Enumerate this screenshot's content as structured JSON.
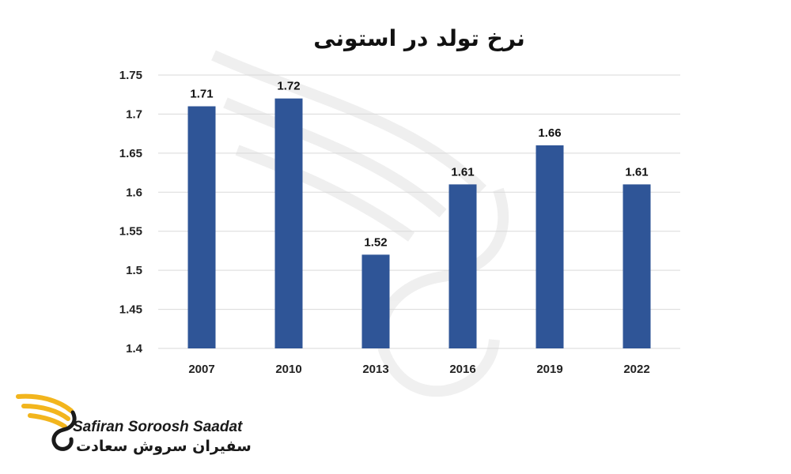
{
  "chart_data": {
    "type": "bar",
    "title": "نرخ تولد در استونی",
    "xlabel": "",
    "ylabel": "",
    "categories": [
      "2007",
      "2010",
      "2013",
      "2016",
      "2019",
      "2022"
    ],
    "values": [
      1.71,
      1.72,
      1.52,
      1.61,
      1.66,
      1.61
    ],
    "value_labels": [
      "1.71",
      "1.72",
      "1.52",
      "1.61",
      "1.66",
      "1.61"
    ],
    "ylim": [
      1.4,
      1.75
    ],
    "yticks": [
      "1.4",
      "1.45",
      "1.5",
      "1.55",
      "1.6",
      "1.65",
      "1.7",
      "1.75"
    ],
    "ytick_values": [
      1.4,
      1.45,
      1.5,
      1.55,
      1.6,
      1.65,
      1.7,
      1.75
    ],
    "grid": true,
    "legend": "none",
    "bar_color": "#2f5597"
  },
  "brand": {
    "name_en": "Safiran Soroosh Saadat",
    "name_fa": "سفیران سروش سعادت",
    "logo_icon": "wing-logo-icon",
    "wing_color": "#f2b51d",
    "watermark_icon": "wing-watermark-icon"
  }
}
